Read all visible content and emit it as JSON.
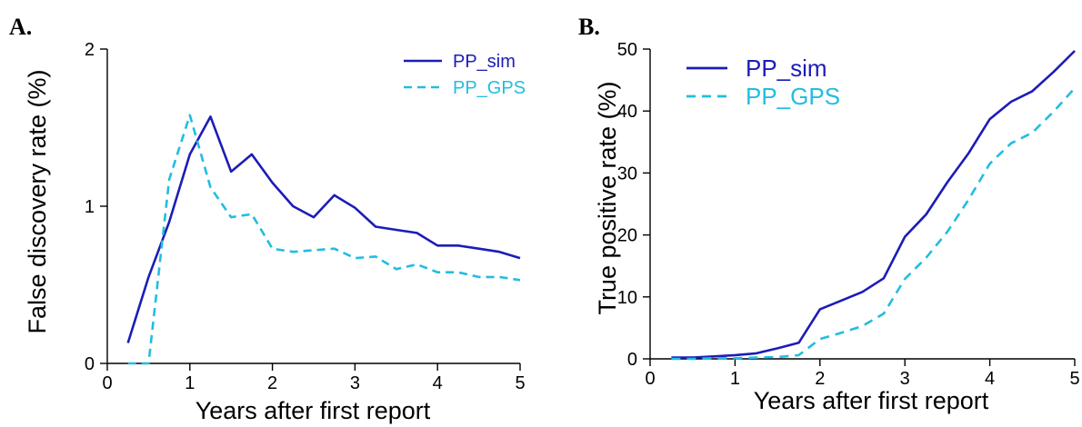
{
  "colors": {
    "pp_sim": "#1c1cb8",
    "pp_gps": "#22bde0"
  },
  "chart_data": [
    {
      "type": "line",
      "panel_label": "A.",
      "xlabel": "Years after first report",
      "ylabel": "False discovery rate (%)",
      "xlim": [
        0,
        5
      ],
      "ylim": [
        0,
        2
      ],
      "xticks": [
        0,
        1,
        2,
        3,
        4,
        5
      ],
      "yticks": [
        0,
        1,
        2
      ],
      "grid": false,
      "legend_position": "top-right",
      "series": [
        {
          "name": "PP_sim",
          "style": "solid",
          "x": [
            0.25,
            0.5,
            0.75,
            1.0,
            1.25,
            1.5,
            1.75,
            2.0,
            2.25,
            2.5,
            2.75,
            3.0,
            3.25,
            3.5,
            3.75,
            4.0,
            4.25,
            4.5,
            4.75,
            5.0
          ],
          "y": [
            0.13,
            0.55,
            0.9,
            1.33,
            1.57,
            1.22,
            1.33,
            1.15,
            1.0,
            0.93,
            1.07,
            0.99,
            0.87,
            0.85,
            0.83,
            0.75,
            0.75,
            0.73,
            0.71,
            0.67
          ]
        },
        {
          "name": "PP_GPS",
          "style": "dashed",
          "x": [
            0.25,
            0.5,
            0.75,
            1.0,
            1.25,
            1.5,
            1.75,
            2.0,
            2.25,
            2.5,
            2.75,
            3.0,
            3.25,
            3.5,
            3.75,
            4.0,
            4.25,
            4.5,
            4.75,
            5.0
          ],
          "y": [
            0.0,
            0.0,
            1.17,
            1.58,
            1.12,
            0.93,
            0.95,
            0.73,
            0.71,
            0.72,
            0.73,
            0.67,
            0.68,
            0.6,
            0.63,
            0.58,
            0.58,
            0.55,
            0.55,
            0.53
          ]
        }
      ]
    },
    {
      "type": "line",
      "panel_label": "B.",
      "xlabel": "Years after first report",
      "ylabel": "True positive rate (%)",
      "xlim": [
        0,
        5
      ],
      "ylim": [
        0,
        50
      ],
      "xticks": [
        0,
        1,
        2,
        3,
        4,
        5
      ],
      "yticks": [
        0,
        10,
        20,
        30,
        40,
        50
      ],
      "grid": false,
      "legend_position": "top-left",
      "series": [
        {
          "name": "PP_sim",
          "style": "solid",
          "x": [
            0.25,
            0.5,
            0.75,
            1.0,
            1.25,
            1.5,
            1.75,
            2.0,
            2.25,
            2.5,
            2.75,
            3.0,
            3.25,
            3.5,
            3.75,
            4.0,
            4.25,
            4.5,
            4.75,
            5.0
          ],
          "y": [
            0.2,
            0.2,
            0.4,
            0.6,
            0.9,
            1.7,
            2.6,
            8.0,
            9.4,
            10.8,
            13.0,
            19.7,
            23.3,
            28.5,
            33.2,
            38.7,
            41.5,
            43.2,
            46.3,
            49.7
          ]
        },
        {
          "name": "PP_GPS",
          "style": "dashed",
          "x": [
            0.25,
            0.5,
            0.75,
            1.0,
            1.25,
            1.5,
            1.75,
            2.0,
            2.25,
            2.5,
            2.75,
            3.0,
            3.25,
            3.5,
            3.75,
            4.0,
            4.25,
            4.5,
            4.75,
            5.0
          ],
          "y": [
            0.0,
            0.0,
            0.1,
            0.1,
            0.2,
            0.3,
            0.6,
            3.2,
            4.2,
            5.3,
            7.3,
            12.9,
            16.3,
            20.5,
            25.7,
            31.5,
            34.8,
            36.5,
            39.9,
            43.7
          ]
        }
      ]
    }
  ]
}
